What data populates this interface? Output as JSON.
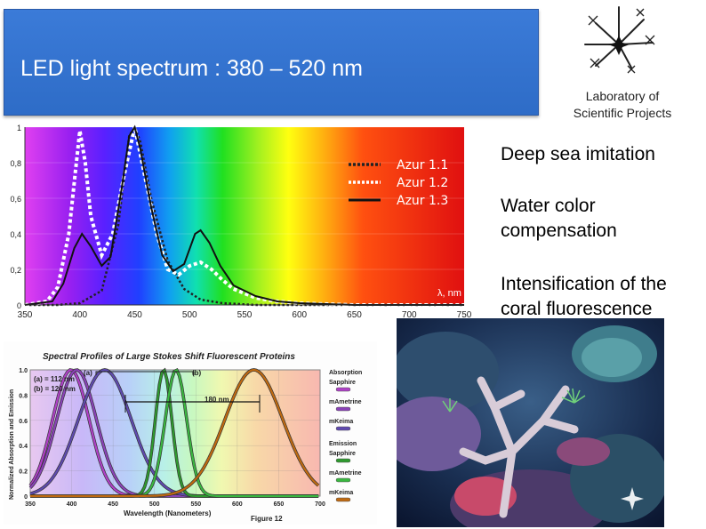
{
  "slide": {
    "title": "LED light spectrum : 380 – 520 nm",
    "lab_label_line1": "Laboratory of",
    "lab_label_line2": "Scientific Projects",
    "bullets": [
      "Deep sea imitation",
      "Water color compensation",
      "Intensification of the coral fluorescence"
    ],
    "accent_color": "#2e6cc7"
  },
  "chart_data": [
    {
      "type": "line",
      "xlim": [
        350,
        750
      ],
      "ylim": [
        0,
        1
      ],
      "xticks": [
        "350",
        "400",
        "450",
        "500",
        "550",
        "600",
        "650",
        "700",
        "750"
      ],
      "yticks": [
        "0",
        "0,2",
        "0,4",
        "0,6",
        "0,8",
        "1"
      ],
      "unit_label": "λ, nm",
      "legend_placement": "top-right",
      "background": "visible spectrum gradient",
      "series": [
        {
          "name": "Azur 1.1",
          "style": "dotted",
          "color": "#222222",
          "x": [
            350,
            380,
            400,
            420,
            435,
            445,
            450,
            455,
            465,
            480,
            495,
            510,
            530,
            560,
            600,
            650,
            700,
            750
          ],
          "y": [
            0,
            0,
            0.01,
            0.08,
            0.45,
            0.95,
            1.0,
            0.92,
            0.6,
            0.25,
            0.09,
            0.03,
            0.01,
            0,
            0,
            0,
            0,
            0
          ]
        },
        {
          "name": "Azur 1.2",
          "style": "dotted",
          "color": "#ffffff",
          "x": [
            350,
            370,
            380,
            390,
            396,
            400,
            405,
            410,
            420,
            430,
            440,
            450,
            460,
            470,
            480,
            490,
            500,
            510,
            520,
            530,
            540,
            560,
            580,
            600,
            650,
            750
          ],
          "y": [
            0,
            0.02,
            0.1,
            0.4,
            0.75,
            0.98,
            0.8,
            0.5,
            0.28,
            0.4,
            0.72,
            1.0,
            0.7,
            0.4,
            0.2,
            0.17,
            0.22,
            0.24,
            0.2,
            0.14,
            0.09,
            0.04,
            0.02,
            0.01,
            0,
            0
          ]
        },
        {
          "name": "Azur 1.3",
          "style": "solid",
          "color": "#111111",
          "x": [
            350,
            375,
            385,
            395,
            402,
            410,
            420,
            428,
            438,
            445,
            450,
            455,
            465,
            475,
            485,
            495,
            505,
            510,
            518,
            528,
            540,
            560,
            580,
            600,
            650,
            750
          ],
          "y": [
            0,
            0.02,
            0.12,
            0.32,
            0.4,
            0.33,
            0.22,
            0.27,
            0.65,
            0.95,
            1.0,
            0.88,
            0.55,
            0.28,
            0.19,
            0.23,
            0.4,
            0.42,
            0.35,
            0.22,
            0.11,
            0.05,
            0.02,
            0.01,
            0,
            0
          ]
        }
      ]
    },
    {
      "type": "line",
      "title": "Spectral Profiles of Large Stokes Shift Fluorescent Proteins",
      "xlabel": "Wavelength (Nanometers)",
      "ylabel": "Normalized Absorption and Emission",
      "caption": "Figure 12",
      "xlim": [
        350,
        700
      ],
      "ylim": [
        0,
        1
      ],
      "xticks": [
        "350",
        "400",
        "450",
        "500",
        "550",
        "600",
        "650",
        "700"
      ],
      "yticks": [
        "0",
        "0.2",
        "0.4",
        "0.6",
        "0.8",
        "1.0"
      ],
      "annotations": [
        "(a) = 112 nm",
        "(b) = 120 nm",
        "(a)",
        "(b)",
        "180 nm"
      ],
      "legend": {
        "absorption_heading": "Absorption",
        "emission_heading": "Emission",
        "entries": [
          "Sapphire",
          "mAmetrine",
          "mKeima"
        ]
      },
      "series": [
        {
          "name": "Sapphire",
          "kind": "absorption",
          "color": "#b040c8",
          "peak": 399,
          "width": 22
        },
        {
          "name": "mAmetrine",
          "kind": "absorption",
          "color": "#8a42b8",
          "peak": 406,
          "width": 24
        },
        {
          "name": "mKeima",
          "kind": "absorption",
          "color": "#5f4ab0",
          "peak": 440,
          "width": 32
        },
        {
          "name": "Sapphire",
          "kind": "emission",
          "color": "#2e9a2e",
          "peak": 511,
          "width": 10
        },
        {
          "name": "mAmetrine",
          "kind": "emission",
          "color": "#3ab840",
          "peak": 526,
          "width": 13
        },
        {
          "name": "mKeima",
          "kind": "emission",
          "color": "#c06a10",
          "peak": 620,
          "width": 35
        }
      ]
    }
  ]
}
